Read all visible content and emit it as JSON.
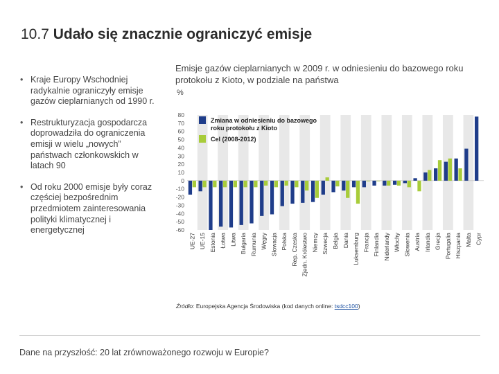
{
  "page": {
    "title_number": "10.7",
    "title_text": "Udało się znacznie ograniczyć emisje",
    "bullets": [
      "Kraje Europy Wschodniej radykalnie ograniczyły emisje gazów cieplarnianych od 1990 r.",
      "Restrukturyzacja gospodarcza doprowadziła do ograniczenia emisji w wielu „nowych” państwach członkowskich w latach 90",
      "Od roku 2000 emisje były coraz częściej bezpośrednim przedmiotem zainteresowania polityki klimatycznej i energetycznej"
    ],
    "chart_heading": "Emisje gazów cieplarnianych w 2009 r. w odniesieniu do bazowego roku protokołu z Kioto, w podziale na państwa",
    "chart_unit": "%",
    "source_label": "Źródło:",
    "source_text": " Europejska Agencja Środowiska (kod danych online: ",
    "source_link": "tsdcc100",
    "source_close": ")",
    "footer": "Dane na przyszłość: 20 lat zrównoważonego rozwoju w Europie?"
  },
  "colors": {
    "change": "#1f3d8a",
    "target": "#a8cc3a",
    "stripe": "#e8e8e8",
    "axis_text": "#555555"
  },
  "chart_data": {
    "type": "bar",
    "title": "Emisje gazów cieplarnianych w 2009 r. w odniesieniu do bazowego roku protokołu z Kioto, w podziale na państwa",
    "ylabel": "%",
    "ylim": [
      -60,
      80
    ],
    "yticks": [
      -60,
      -50,
      -40,
      -30,
      -20,
      -10,
      0,
      10,
      20,
      30,
      40,
      50,
      60,
      70,
      80
    ],
    "legend": [
      "Zmiana w odniesieniu do bazowego roku protokołu z Kioto",
      "Cel (2008-2012)"
    ],
    "legend_position": "top-left",
    "categories": [
      "UE-27",
      "UE-15",
      "Estonia",
      "Łotwa",
      "Litwa",
      "Bułgaria",
      "Rumunia",
      "Węgry",
      "Słowacja",
      "Polska",
      "Rep. Czeska",
      "Zjedn. Królestwo",
      "Niemcy",
      "Szwecja",
      "Belgia",
      "Dania",
      "Luksemburg",
      "Francja",
      "Finlandia",
      "Niderlandy",
      "Włochy",
      "Słowenia",
      "Austria",
      "Irlandia",
      "Grecja",
      "Portugalia",
      "Hiszpania",
      "Malta",
      "Cypr"
    ],
    "series": [
      {
        "name": "Zmiana w odniesieniu do bazowego roku protokołu z Kioto",
        "values": [
          -17,
          -13,
          -60,
          -56,
          -57,
          -54,
          -52,
          -43,
          -41,
          -31,
          -28,
          -27,
          -26,
          -17,
          -14,
          -12,
          -8,
          -8,
          -6,
          -6,
          -5,
          -3,
          3,
          10,
          15,
          23,
          27,
          39,
          78
        ]
      },
      {
        "name": "Cel (2008-2012)",
        "values": [
          -8,
          -8,
          -8,
          -8,
          -8,
          -8,
          -8,
          -6,
          -8,
          -6,
          -8,
          -12,
          -21,
          4,
          -7,
          -21,
          -28,
          0,
          0,
          -6,
          -6,
          -8,
          -13,
          13,
          25,
          27,
          15,
          null,
          null
        ]
      }
    ]
  }
}
